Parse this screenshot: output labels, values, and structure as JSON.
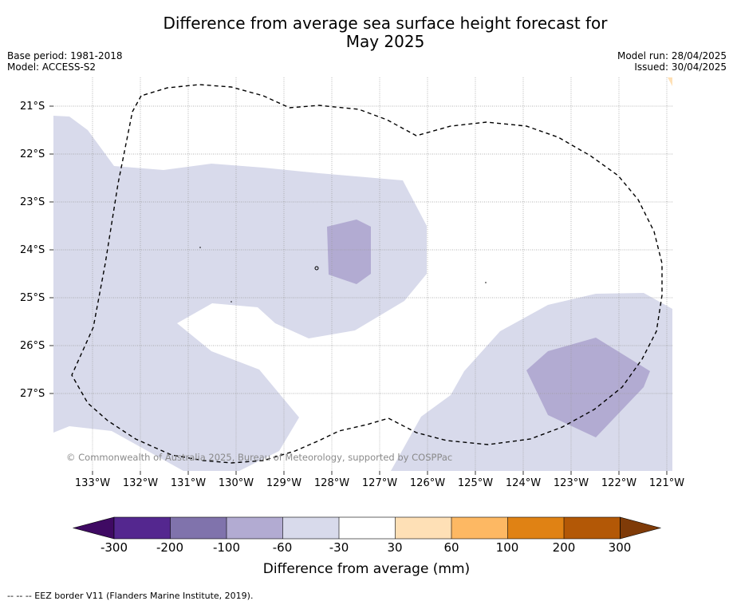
{
  "title_line1": "Difference from average sea surface height forecast for",
  "title_line2": "May 2025",
  "base_period": "Base period: 1981-2018",
  "model": "Model: ACCESS-S2",
  "model_run": "Model run: 28/04/2025",
  "issued": "Issued: 30/04/2025",
  "copyright": "© Commonwealth of Australia 2025, Bureau of Meteorology, supported by COSPPac",
  "footnote": "--  --  -- EEZ border V11 (Flanders Marine Institute, 2019).",
  "latitudes": [
    "21°S",
    "22°S",
    "23°S",
    "24°S",
    "25°S",
    "26°S",
    "27°S"
  ],
  "longitudes": [
    "133°W",
    "132°W",
    "131°W",
    "130°W",
    "129°W",
    "128°W",
    "127°W",
    "126°W",
    "125°W",
    "124°W",
    "123°W",
    "122°W",
    "121°W"
  ],
  "colorbar": {
    "label": "Difference from average (mm)",
    "ticks": [
      "-300",
      "-200",
      "-100",
      "-60",
      "-30",
      "30",
      "60",
      "100",
      "200",
      "300"
    ],
    "colors": [
      "#3f0a63",
      "#54278f",
      "#8073ac",
      "#b2abd2",
      "#d8daeb",
      "#ffffff",
      "#fee0b6",
      "#fdb863",
      "#e08214",
      "#b35806",
      "#7f3b08"
    ]
  },
  "map_colors": {
    "light_purple": "#d8daeb",
    "mid_purple": "#b2abd2",
    "light_orange": "#fee0b6",
    "grid": "#9a9a9a",
    "eez": "#000000"
  }
}
